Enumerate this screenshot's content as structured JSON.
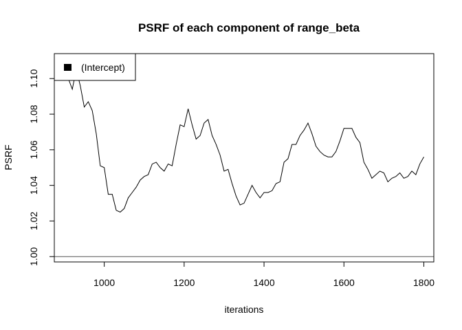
{
  "chart_data": {
    "type": "line",
    "title": "PSRF of each component of range_beta",
    "xlabel": "iterations",
    "ylabel": "PSRF",
    "xlim": [
      875,
      1825
    ],
    "ylim": [
      0.997,
      1.114
    ],
    "xticks": [
      1000,
      1200,
      1400,
      1600,
      1800
    ],
    "xtick_labels": [
      "1000",
      "1200",
      "1400",
      "1600",
      "1800"
    ],
    "yticks": [
      1.0,
      1.02,
      1.04,
      1.06,
      1.08,
      1.1
    ],
    "ytick_labels": [
      "1.00",
      "1.02",
      "1.04",
      "1.06",
      "1.08",
      "1.10"
    ],
    "reference_line": {
      "y": 1.0,
      "color": "#555555"
    },
    "legend": {
      "position": "top-left",
      "entries": [
        "(Intercept)"
      ]
    },
    "grid": false,
    "series": [
      {
        "name": "(Intercept)",
        "color": "#000000",
        "x": [
          900,
          910,
          920,
          930,
          940,
          950,
          960,
          970,
          980,
          990,
          1000,
          1010,
          1020,
          1030,
          1040,
          1050,
          1060,
          1070,
          1080,
          1090,
          1100,
          1110,
          1120,
          1130,
          1140,
          1150,
          1160,
          1170,
          1180,
          1190,
          1200,
          1210,
          1220,
          1230,
          1240,
          1250,
          1260,
          1270,
          1280,
          1290,
          1300,
          1310,
          1320,
          1330,
          1340,
          1350,
          1360,
          1370,
          1380,
          1390,
          1400,
          1410,
          1420,
          1430,
          1440,
          1450,
          1460,
          1470,
          1480,
          1490,
          1500,
          1510,
          1520,
          1530,
          1540,
          1550,
          1560,
          1570,
          1580,
          1590,
          1600,
          1610,
          1620,
          1630,
          1640,
          1650,
          1660,
          1670,
          1680,
          1690,
          1700,
          1710,
          1720,
          1730,
          1740,
          1750,
          1760,
          1770,
          1780,
          1790,
          1800
        ],
        "values": [
          1.112,
          1.1,
          1.094,
          1.105,
          1.096,
          1.084,
          1.087,
          1.082,
          1.069,
          1.051,
          1.05,
          1.035,
          1.035,
          1.026,
          1.025,
          1.027,
          1.033,
          1.036,
          1.039,
          1.043,
          1.045,
          1.046,
          1.052,
          1.053,
          1.05,
          1.048,
          1.052,
          1.051,
          1.063,
          1.074,
          1.073,
          1.083,
          1.074,
          1.066,
          1.068,
          1.075,
          1.077,
          1.068,
          1.063,
          1.057,
          1.048,
          1.049,
          1.041,
          1.034,
          1.029,
          1.03,
          1.035,
          1.04,
          1.036,
          1.033,
          1.036,
          1.036,
          1.037,
          1.041,
          1.042,
          1.053,
          1.055,
          1.063,
          1.063,
          1.068,
          1.071,
          1.075,
          1.069,
          1.062,
          1.059,
          1.057,
          1.056,
          1.056,
          1.059,
          1.065,
          1.072,
          1.072,
          1.072,
          1.067,
          1.064,
          1.053,
          1.049,
          1.044,
          1.046,
          1.048,
          1.047,
          1.042,
          1.044,
          1.045,
          1.047,
          1.044,
          1.045,
          1.048,
          1.046,
          1.052,
          1.056
        ]
      }
    ]
  }
}
